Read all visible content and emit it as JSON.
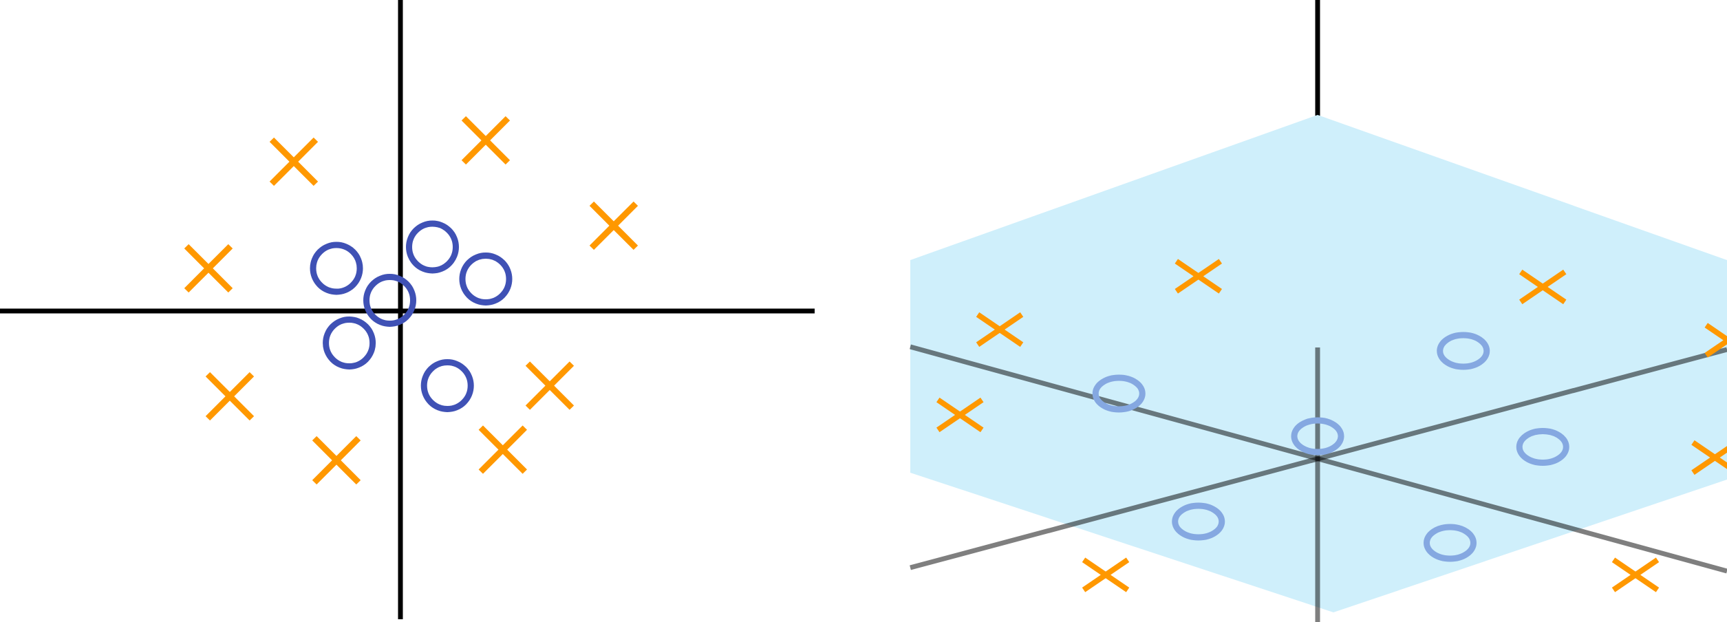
{
  "chart_data": [
    {
      "type": "scatter",
      "title": "",
      "xlabel": "",
      "ylabel": "",
      "axes": "cross",
      "grid": false,
      "series": [
        {
          "marker": "circle",
          "color": "#3F51B5",
          "points": [
            [
              -0.3,
              0.2
            ],
            [
              0.15,
              0.3
            ],
            [
              0.4,
              0.15
            ],
            [
              -0.05,
              0.05
            ],
            [
              -0.24,
              -0.15
            ],
            [
              0.22,
              -0.35
            ]
          ]
        },
        {
          "marker": "cross",
          "color": "#FF9800",
          "points": [
            [
              -0.5,
              0.7
            ],
            [
              0.4,
              0.8
            ],
            [
              1.0,
              0.4
            ],
            [
              -0.9,
              0.2
            ],
            [
              -0.8,
              -0.4
            ],
            [
              -0.3,
              -0.7
            ],
            [
              0.7,
              -0.35
            ],
            [
              0.48,
              -0.65
            ]
          ]
        }
      ]
    },
    {
      "type": "scatter",
      "title": "",
      "projection": "3d",
      "plane_color": "#CFEFFB",
      "axes_color": "#7F7F7F",
      "series": [
        {
          "marker": "circle",
          "color": "#85A8E1",
          "points": [
            [
              -0.75,
              0.3
            ],
            [
              0.55,
              0.5
            ],
            [
              0.85,
              0.05
            ],
            [
              0.0,
              0.1
            ],
            [
              -0.45,
              -0.3
            ],
            [
              0.5,
              -0.4
            ]
          ]
        },
        {
          "marker": "cross",
          "color": "#FF9800",
          "points": [
            [
              -1.2,
              0.6
            ],
            [
              -0.45,
              0.85
            ],
            [
              0.85,
              0.8
            ],
            [
              1.55,
              0.55
            ],
            [
              -1.35,
              0.2
            ],
            [
              1.5,
              0.0
            ],
            [
              -0.8,
              -0.55
            ],
            [
              1.2,
              -0.55
            ]
          ]
        }
      ]
    }
  ]
}
